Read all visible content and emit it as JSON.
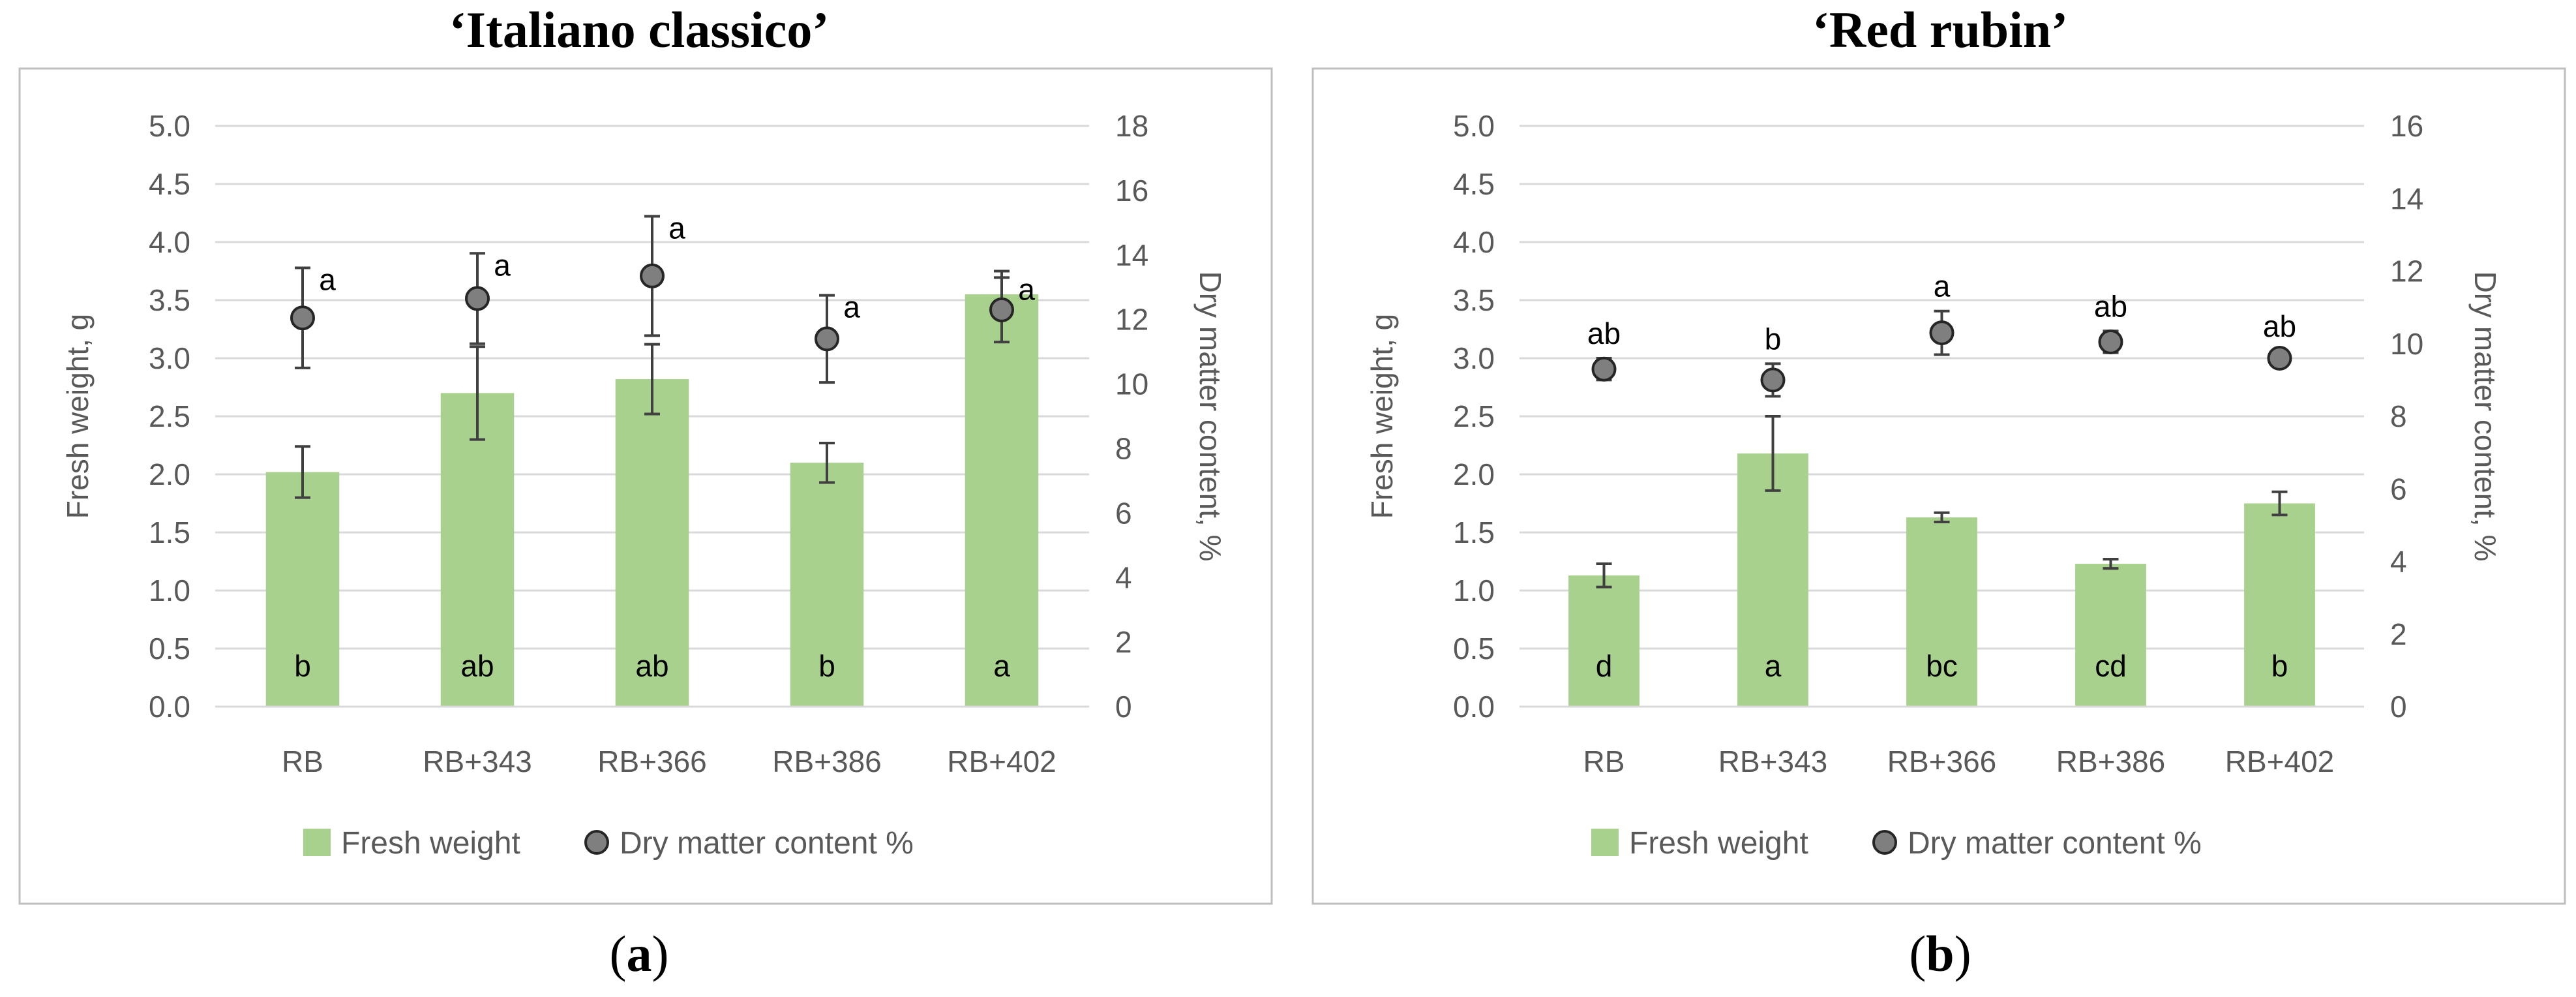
{
  "colors": {
    "bar": "#a9d18e",
    "marker": "#7f7f7f",
    "marker_edge": "#262626",
    "grid": "#d9d9d9",
    "frame": "#bfbfbf",
    "error": "#404040"
  },
  "chart_data": [
    {
      "type": "bar",
      "panel_label": "a",
      "title": "‘Italiano classico’",
      "categories": [
        "RB",
        "RB+343",
        "RB+366",
        "RB+386",
        "RB+402"
      ],
      "ylabel": "Fresh weight, g",
      "y2label": "Dry matter content, %",
      "ylim": [
        0,
        5
      ],
      "yticks": [
        "0.0",
        "0.5",
        "1.0",
        "1.5",
        "2.0",
        "2.5",
        "3.0",
        "3.5",
        "4.0",
        "4.5",
        "5.0"
      ],
      "y2lim": [
        0,
        18
      ],
      "y2ticks": [
        "0",
        "2",
        "4",
        "6",
        "8",
        "10",
        "12",
        "14",
        "16",
        "18"
      ],
      "grid": true,
      "legend": [
        "Fresh weight",
        "Dry matter content %"
      ],
      "legend_position": "bottom",
      "series": [
        {
          "name": "Fresh weight",
          "kind": "bar",
          "axis": "left",
          "values": [
            2.02,
            2.7,
            2.82,
            2.1,
            3.55
          ],
          "errors": [
            0.22,
            0.4,
            0.3,
            0.17,
            0.2
          ],
          "letters": [
            "b",
            "ab",
            "ab",
            "b",
            "a"
          ]
        },
        {
          "name": "Dry matter content %",
          "kind": "marker",
          "axis": "right",
          "values": [
            12.05,
            12.65,
            13.35,
            11.4,
            12.3
          ],
          "errors": [
            1.55,
            1.4,
            1.85,
            1.35,
            1.0
          ],
          "letters": [
            "a",
            "a",
            "a",
            "a",
            "a"
          ]
        }
      ]
    },
    {
      "type": "bar",
      "panel_label": "b",
      "title": "‘Red rubin’",
      "categories": [
        "RB",
        "RB+343",
        "RB+366",
        "RB+386",
        "RB+402"
      ],
      "ylabel": "Fresh weight, g",
      "y2label": "Dry matter content, %",
      "ylim": [
        0,
        5
      ],
      "yticks": [
        "0.0",
        "0.5",
        "1.0",
        "1.5",
        "2.0",
        "2.5",
        "3.0",
        "3.5",
        "4.0",
        "4.5",
        "5.0"
      ],
      "y2lim": [
        0,
        16
      ],
      "y2ticks": [
        "0",
        "2",
        "4",
        "6",
        "8",
        "10",
        "12",
        "14",
        "16"
      ],
      "grid": true,
      "legend": [
        "Fresh weight",
        "Dry matter content %"
      ],
      "legend_position": "bottom",
      "series": [
        {
          "name": "Fresh weight",
          "kind": "bar",
          "axis": "left",
          "values": [
            1.13,
            2.18,
            1.63,
            1.23,
            1.75
          ],
          "errors": [
            0.1,
            0.32,
            0.04,
            0.04,
            0.1
          ],
          "letters": [
            "d",
            "a",
            "bc",
            "cd",
            "b"
          ]
        },
        {
          "name": "Dry matter content %",
          "kind": "marker",
          "axis": "right",
          "values": [
            9.3,
            9.0,
            10.3,
            10.05,
            9.6
          ],
          "errors": [
            0.3,
            0.45,
            0.6,
            0.3,
            0.2
          ],
          "letters": [
            "ab",
            "b",
            "a",
            "ab",
            "ab"
          ]
        }
      ]
    }
  ]
}
